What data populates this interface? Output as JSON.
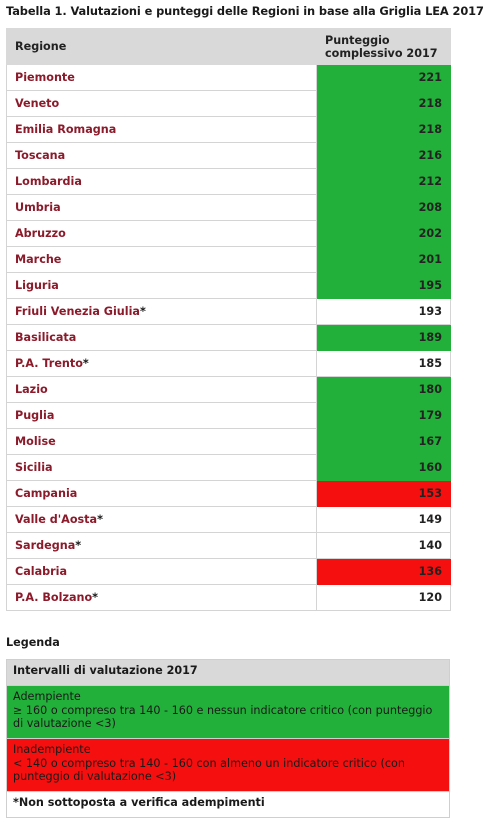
{
  "caption": "Tabella 1. Valutazioni e punteggi delle Regioni in base alla Griglia LEA 2017",
  "table": {
    "header_region": "Regione",
    "header_score_line1": "Punteggio",
    "header_score_line2": "complessivo 2017",
    "rows": [
      {
        "name": "Piemonte",
        "star": "",
        "score": "221",
        "status": "green"
      },
      {
        "name": "Veneto",
        "star": "",
        "score": "218",
        "status": "green"
      },
      {
        "name": "Emilia Romagna",
        "star": "",
        "score": "218",
        "status": "green"
      },
      {
        "name": "Toscana",
        "star": "",
        "score": "216",
        "status": "green"
      },
      {
        "name": "Lombardia",
        "star": "",
        "score": "212",
        "status": "green"
      },
      {
        "name": "Umbria",
        "star": "",
        "score": "208",
        "status": "green"
      },
      {
        "name": "Abruzzo",
        "star": "",
        "score": "202",
        "status": "green"
      },
      {
        "name": "Marche",
        "star": "",
        "score": "201",
        "status": "green"
      },
      {
        "name": "Liguria",
        "star": "",
        "score": "195",
        "status": "green"
      },
      {
        "name": "Friuli Venezia Giulia",
        "star": "*",
        "score": "193",
        "status": "white"
      },
      {
        "name": "Basilicata",
        "star": "",
        "score": "189",
        "status": "green"
      },
      {
        "name": "P.A. Trento",
        "star": "*",
        "score": "185",
        "status": "white"
      },
      {
        "name": "Lazio",
        "star": "",
        "score": "180",
        "status": "green"
      },
      {
        "name": "Puglia",
        "star": "",
        "score": "179",
        "status": "green"
      },
      {
        "name": "Molise",
        "star": "",
        "score": "167",
        "status": "green"
      },
      {
        "name": "Sicilia",
        "star": "",
        "score": "160",
        "status": "green"
      },
      {
        "name": "Campania",
        "star": "",
        "score": "153",
        "status": "red"
      },
      {
        "name": "Valle d'Aosta",
        "star": "*",
        "score": "149",
        "status": "white"
      },
      {
        "name": "Sardegna",
        "star": "*",
        "score": "140",
        "status": "white"
      },
      {
        "name": "Calabria",
        "star": "",
        "score": "136",
        "status": "red"
      },
      {
        "name": "P.A. Bolzano",
        "star": "*",
        "score": "120",
        "status": "white"
      }
    ]
  },
  "legend": {
    "title": "Legenda",
    "header": "Intervalli di valutazione 2017",
    "green_title": "Adempiente",
    "green_text": "≥ 160 o compreso tra 140 - 160 e nessun indicatore critico (con punteggio di valutazione <3)",
    "red_title": "Inadempiente",
    "red_text": "< 140 o compreso tra 140 - 160 con almeno un indicatore critico (con punteggio di valutazione <3)",
    "note": "*Non sottoposta a verifica adempimenti"
  },
  "colors": {
    "green": "#22b03a",
    "red": "#f50f0f",
    "header_gray": "#d9d9d9",
    "region_text": "#8b1a2a"
  }
}
